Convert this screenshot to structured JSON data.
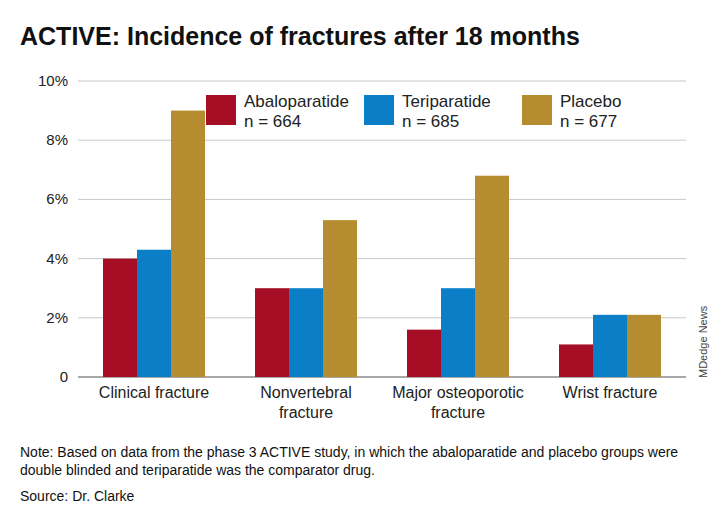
{
  "chart_data": {
    "type": "bar",
    "title": "ACTIVE: Incidence of fractures after 18 months",
    "categories": [
      "Clinical fracture",
      "Nonvertebral\nfracture",
      "Major osteoporotic\nfracture",
      "Wrist fracture"
    ],
    "series": [
      {
        "name": "Abaloparatide\nn = 664",
        "color": "#a50e24",
        "values": [
          4.0,
          3.0,
          1.6,
          1.1
        ]
      },
      {
        "name": "Teriparatide\nn = 685",
        "color": "#0a7fc8",
        "values": [
          4.3,
          3.0,
          3.0,
          2.1
        ]
      },
      {
        "name": "Placebo\nn = 677",
        "color": "#b58c2f",
        "values": [
          9.0,
          5.3,
          6.8,
          2.1
        ]
      }
    ],
    "ylim": [
      0,
      10
    ],
    "yticks": [
      0,
      {
        "value": 2,
        "label": "2%"
      },
      {
        "value": 4,
        "label": "4%"
      },
      {
        "value": 6,
        "label": "6%"
      },
      {
        "value": 8,
        "label": "8%"
      },
      {
        "value": 10,
        "label": "10%"
      }
    ],
    "grid": true,
    "legend": "top-right",
    "note": "Note: Based on data from the phase 3 ACTIVE study, in which the abaloparatide and placebo groups were double blinded and teriparatide was the comparator drug.",
    "source": "Source: Dr. Clarke",
    "credit": "MDedge News"
  }
}
